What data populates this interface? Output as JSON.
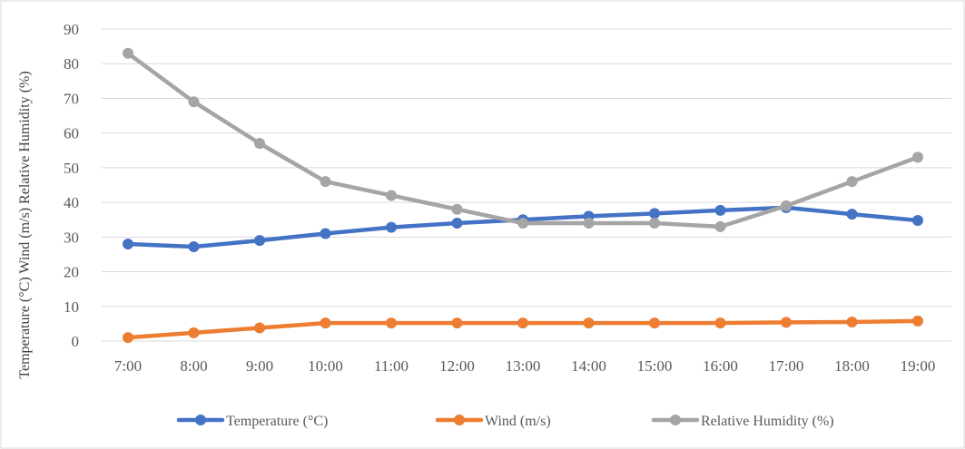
{
  "chart_data": {
    "type": "line",
    "title": "",
    "xlabel": "",
    "ylabel": "Temperature (°C)    Wind (m/s)    Relative Humidity (%)",
    "categories": [
      "7:00",
      "8:00",
      "9:00",
      "10:00",
      "11:00",
      "12:00",
      "13:00",
      "14:00",
      "15:00",
      "16:00",
      "17:00",
      "18:00",
      "19:00"
    ],
    "ylim": [
      0,
      90
    ],
    "yticks": [
      0,
      10,
      20,
      30,
      40,
      50,
      60,
      70,
      80,
      90
    ],
    "grid": true,
    "legend": "bottom",
    "series": [
      {
        "name": "Temperature (°C)",
        "color": "#4472C4",
        "values": [
          28,
          27.2,
          29,
          31,
          32.8,
          34,
          35,
          36,
          36.8,
          37.7,
          38.5,
          36.6,
          34.8
        ]
      },
      {
        "name": "Wind (m/s)",
        "color": "#ED7D31",
        "values": [
          1,
          2.4,
          3.8,
          5.2,
          5.2,
          5.2,
          5.2,
          5.2,
          5.2,
          5.2,
          5.4,
          5.5,
          5.8
        ]
      },
      {
        "name": "Relative Humidity (%)",
        "color": "#A5A5A5",
        "values": [
          83,
          69,
          57,
          46,
          42,
          38,
          34,
          34,
          34,
          33,
          39,
          46,
          53
        ]
      }
    ]
  }
}
